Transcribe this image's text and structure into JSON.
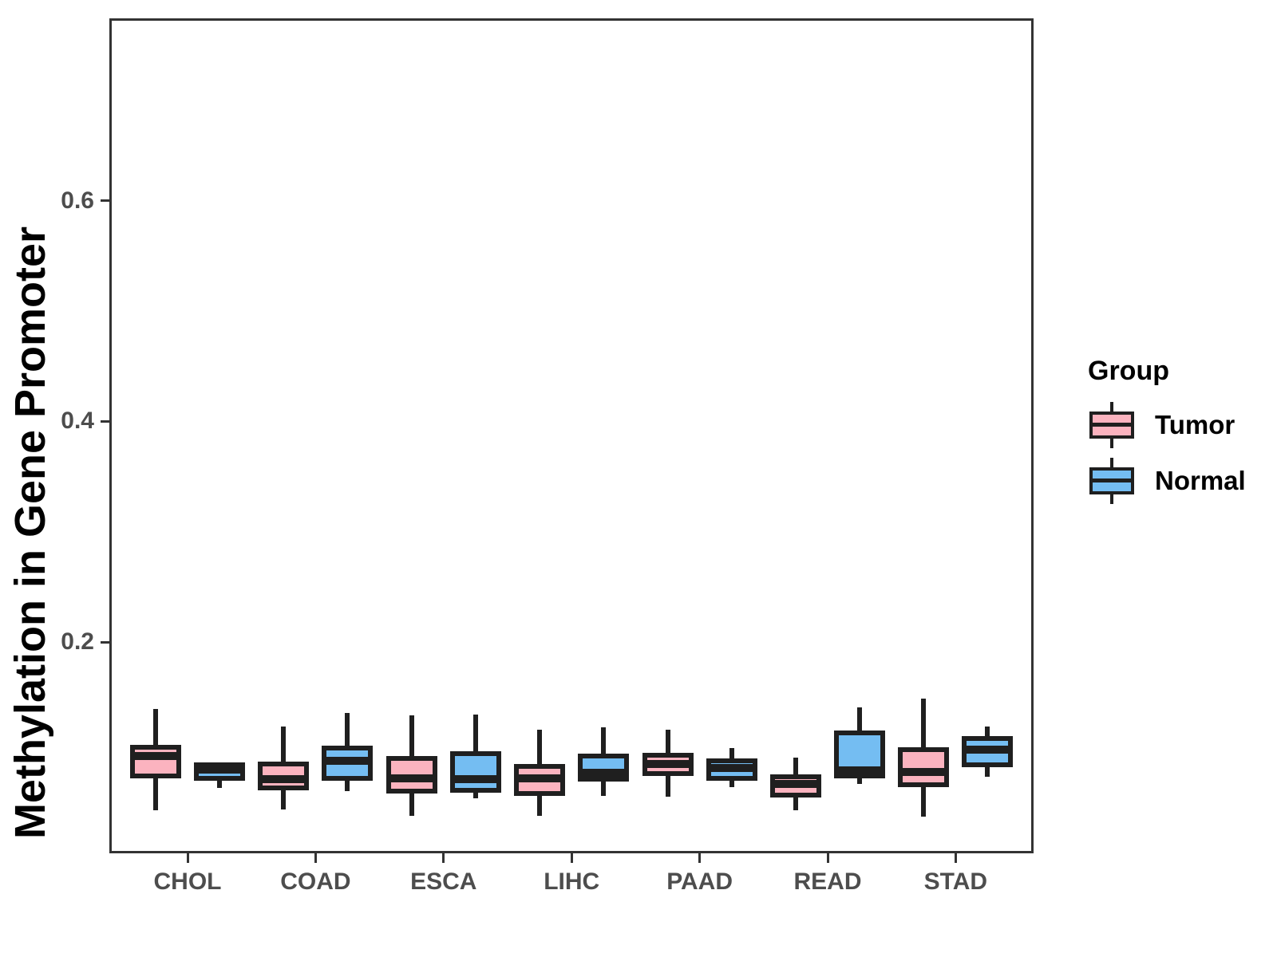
{
  "figure": {
    "background": "#FFFFFF",
    "legend": {
      "title": "Group",
      "entries": [
        {
          "label": "Tumor",
          "color": "#FBB3BF"
        },
        {
          "label": "Normal",
          "color": "#74BDF2"
        }
      ]
    }
  },
  "style": {
    "box_border": "#1F1F1F",
    "panel_border": "#333333",
    "axis_text": "#4D4D4D",
    "tumor_fill": "#FBB3BF",
    "normal_fill": "#74BDF2"
  },
  "chart_data": {
    "type": "boxplot",
    "title": "",
    "xlabel": "",
    "ylabel": "Methylation in Gene Promoter",
    "categories": [
      "CHOL",
      "COAD",
      "ESCA",
      "LIHC",
      "PAAD",
      "READ",
      "STAD"
    ],
    "y_ticks": [
      0.2,
      0.4,
      0.6
    ],
    "y_tick_labels": [
      "0.2",
      "0.4",
      "0.6"
    ],
    "ylim": [
      0.009,
      0.765
    ],
    "grid": false,
    "legend_position": "right",
    "series": [
      {
        "name": "Tumor",
        "color": "#FBB3BF",
        "boxes": [
          {
            "category": "CHOL",
            "whisker_low": 0.048,
            "q1": 0.079,
            "median": 0.097,
            "q3": 0.105,
            "whisker_high": 0.14
          },
          {
            "category": "COAD",
            "whisker_low": 0.049,
            "q1": 0.068,
            "median": 0.076,
            "q3": 0.09,
            "whisker_high": 0.124
          },
          {
            "category": "ESCA",
            "whisker_low": 0.043,
            "q1": 0.065,
            "median": 0.077,
            "q3": 0.095,
            "whisker_high": 0.134
          },
          {
            "category": "LIHC",
            "whisker_low": 0.043,
            "q1": 0.063,
            "median": 0.077,
            "q3": 0.088,
            "whisker_high": 0.121
          },
          {
            "category": "PAAD",
            "whisker_low": 0.06,
            "q1": 0.081,
            "median": 0.09,
            "q3": 0.098,
            "whisker_high": 0.121
          },
          {
            "category": "READ",
            "whisker_low": 0.048,
            "q1": 0.062,
            "median": 0.072,
            "q3": 0.078,
            "whisker_high": 0.096
          },
          {
            "category": "STAD",
            "whisker_low": 0.042,
            "q1": 0.071,
            "median": 0.083,
            "q3": 0.103,
            "whisker_high": 0.149
          }
        ]
      },
      {
        "name": "Normal",
        "color": "#74BDF2",
        "boxes": [
          {
            "category": "CHOL",
            "whisker_low": 0.068,
            "q1": 0.077,
            "median": 0.085,
            "q3": 0.089,
            "whisker_high": 0.09
          },
          {
            "category": "COAD",
            "whisker_low": 0.065,
            "q1": 0.077,
            "median": 0.093,
            "q3": 0.104,
            "whisker_high": 0.136
          },
          {
            "category": "ESCA",
            "whisker_low": 0.059,
            "q1": 0.066,
            "median": 0.076,
            "q3": 0.099,
            "whisker_high": 0.135
          },
          {
            "category": "LIHC",
            "whisker_low": 0.061,
            "q1": 0.076,
            "median": 0.082,
            "q3": 0.097,
            "whisker_high": 0.123
          },
          {
            "category": "PAAD",
            "whisker_low": 0.069,
            "q1": 0.077,
            "median": 0.086,
            "q3": 0.093,
            "whisker_high": 0.104
          },
          {
            "category": "READ",
            "whisker_low": 0.072,
            "q1": 0.079,
            "median": 0.084,
            "q3": 0.118,
            "whisker_high": 0.141
          },
          {
            "category": "STAD",
            "whisker_low": 0.078,
            "q1": 0.089,
            "median": 0.103,
            "q3": 0.113,
            "whisker_high": 0.124
          }
        ]
      }
    ]
  }
}
